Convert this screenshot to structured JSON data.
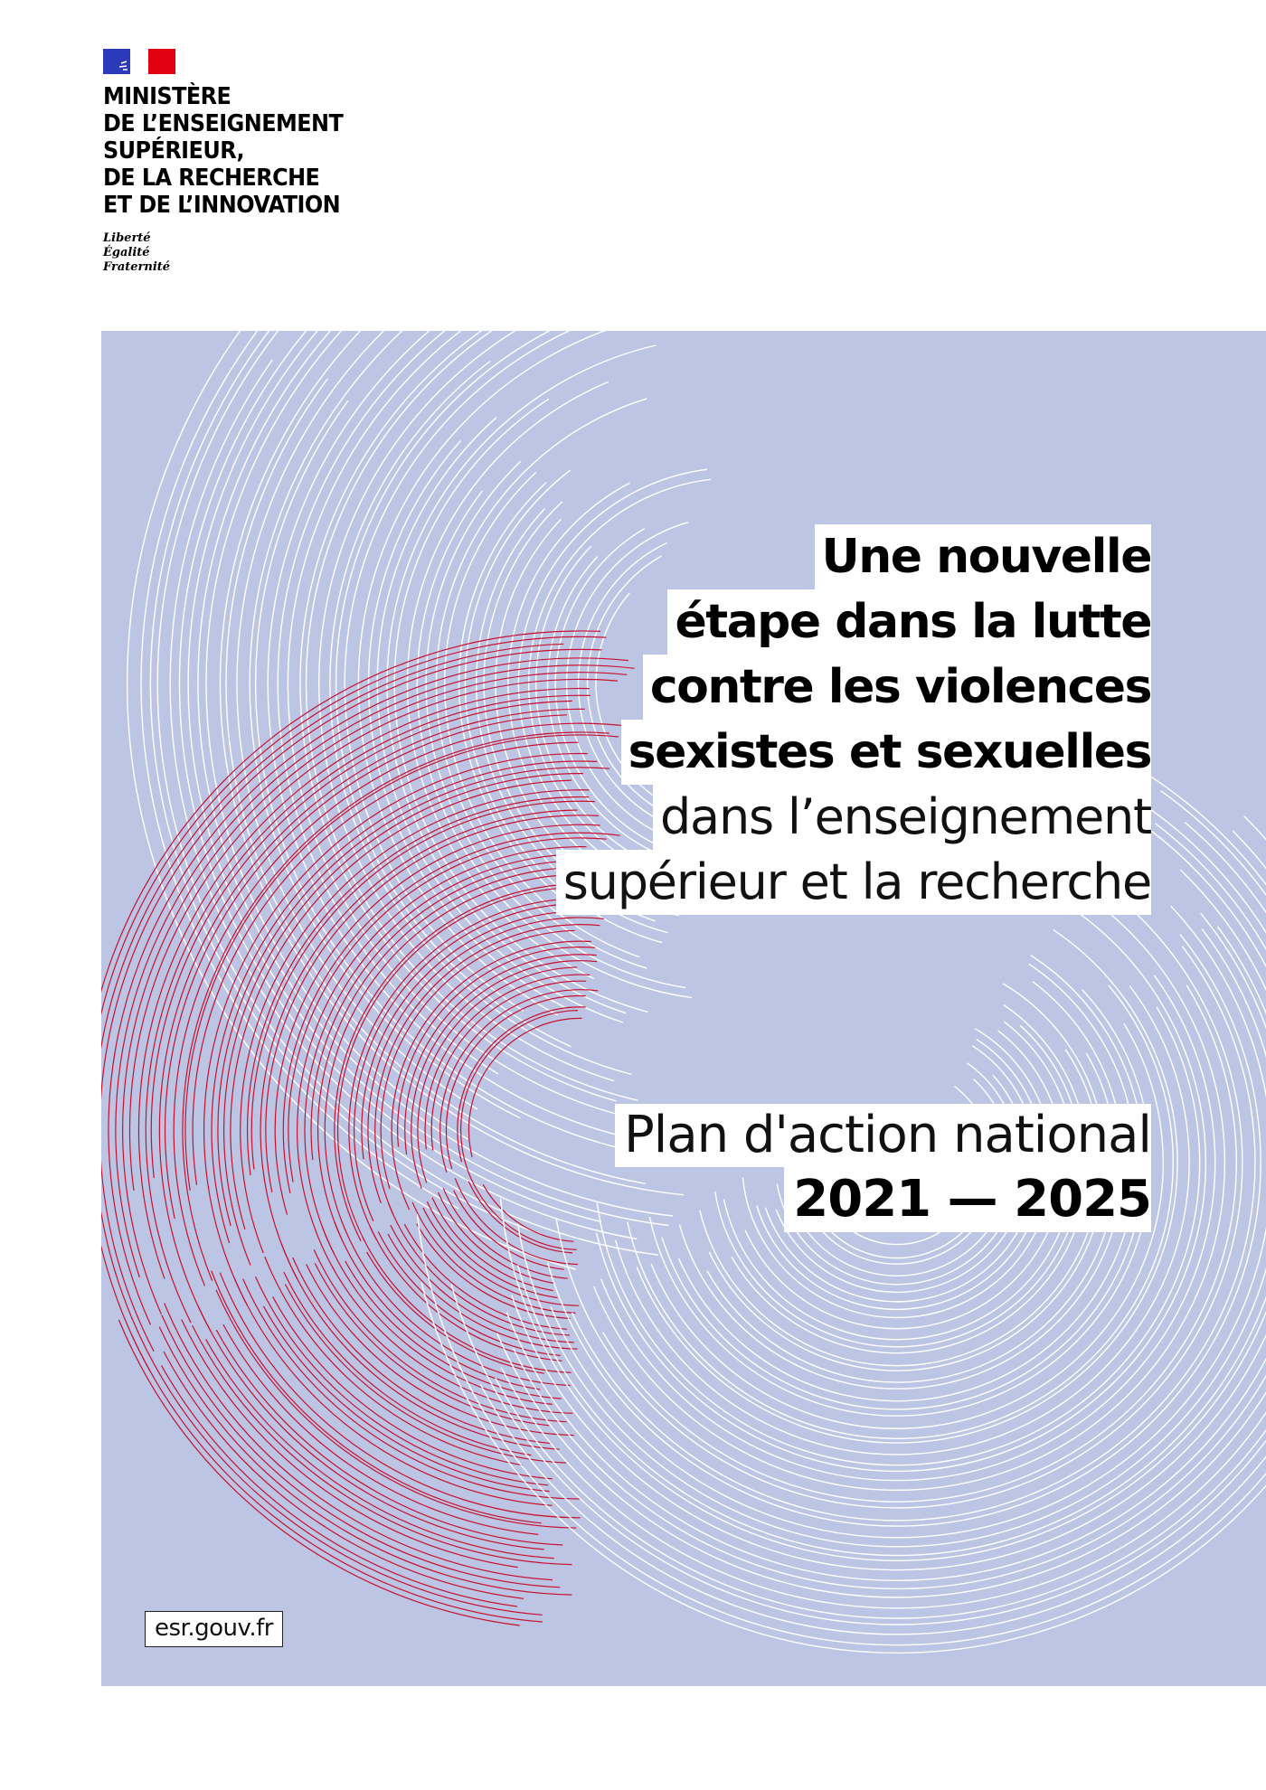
{
  "header": {
    "ministry_lines": [
      "MINISTÈRE",
      "DE L’ENSEIGNEMENT",
      "SUPÉRIEUR,",
      "DE LA RECHERCHE",
      "ET DE L’INNOVATION"
    ],
    "motto": [
      "Liberté",
      "Égalité",
      "Fraternité"
    ],
    "flag_colors": {
      "blue": "#2a3ab8",
      "white": "#ffffff",
      "red": "#e1000f"
    }
  },
  "cover": {
    "background_color": "#bcc6e4",
    "arc_colors": {
      "red": "#c8102e",
      "white": "#ffffff"
    },
    "title_bold_lines": [
      "Une nouvelle",
      "étape dans la lutte",
      "contre les violences",
      "sexistes et sexuelles"
    ],
    "title_light_lines": [
      "dans l’enseignement",
      "supérieur et la recherche"
    ],
    "plan_label": "Plan d'action national",
    "years": "2021 — 2025",
    "website": "esr.gouv.fr"
  }
}
